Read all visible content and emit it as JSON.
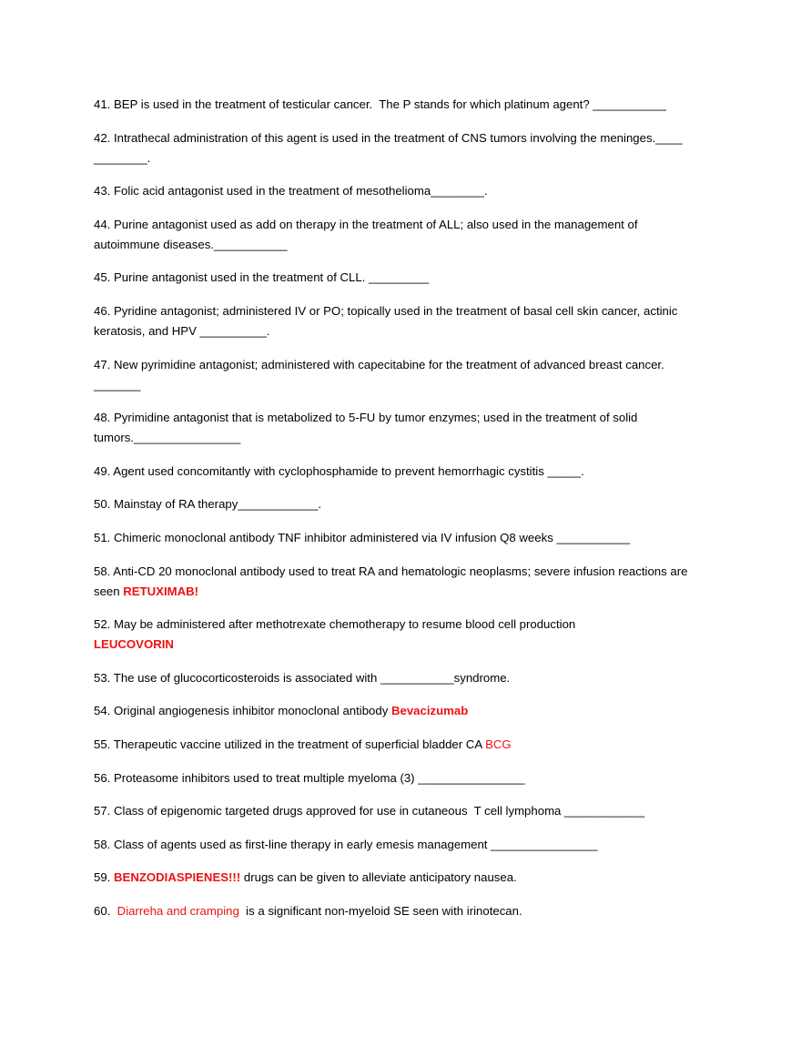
{
  "answer_color": "#ee1111",
  "items": [
    {
      "before": "41. BEP is used in the treatment of testicular cancer.  The P stands for which platinum agent? ___________"
    },
    {
      "before": "42. Intrathecal administration of this agent is used in the treatment of CNS tumors involving the meninges.____ ________."
    },
    {
      "before": "43. Folic acid antagonist used in the treatment of mesothelioma________."
    },
    {
      "before": "44. Purine antagonist used as add on therapy in the treatment of ALL; also used in the management of autoimmune diseases.___________"
    },
    {
      "before": "45. Purine antagonist used in the treatment of CLL. _________"
    },
    {
      "before": "46. Pyridine antagonist; administered IV or PO; topically used in the treatment of basal cell skin cancer, actinic keratosis, and HPV __________."
    },
    {
      "before": "47. New pyrimidine antagonist; administered with capecitabine for the treatment of advanced breast cancer. _______"
    },
    {
      "before": "48. Pyrimidine antagonist that is metabolized to 5-FU by tumor enzymes; used in the treatment of solid tumors.________________"
    },
    {
      "before": "49. Agent used concomitantly with cyclophosphamide to prevent hemorrhagic cystitis _____."
    },
    {
      "before": "50. Mainstay of RA therapy____________."
    },
    {
      "before": "51. Chimeric monoclonal antibody TNF inhibitor administered via IV infusion Q8 weeks ___________"
    },
    {
      "before": "58. Anti-CD 20 monoclonal antibody used to treat RA and hematologic neoplasms; severe infusion reactions are seen ",
      "answer": "RETUXIMAB!",
      "answer_weight": "bold"
    },
    {
      "before": "52. May be administered after methotrexate chemotherapy to resume blood cell production",
      "answer": "LEUCOVORIN",
      "answer_weight": "bold",
      "answer_on_new_line": true
    },
    {
      "before": "53. The use of glucocorticosteroids is associated with ___________syndrome."
    },
    {
      "before": "54. Original angiogenesis inhibitor monoclonal antibody ",
      "answer": "Bevacizumab",
      "answer_weight": "bold"
    },
    {
      "before": "55. Therapeutic vaccine utilized in the treatment of superficial bladder CA ",
      "answer": "BCG",
      "answer_weight": "normal"
    },
    {
      "before": "56. Proteasome inhibitors used to treat multiple myeloma (3) ________________"
    },
    {
      "before": "57. Class of epigenomic targeted drugs approved for use in cutaneous  T cell lymphoma ____________"
    },
    {
      "before": "58. Class of agents used as first-line therapy in early emesis management ________________"
    },
    {
      "before": "59. ",
      "answer": "BENZODIASPIENES!!!",
      "answer_weight": "bold",
      "after": " drugs can be given to alleviate anticipatory nausea."
    },
    {
      "before": "60.  ",
      "answer": "Diarreha and cramping",
      "answer_weight": "normal",
      "after": "  is a significant non-myeloid SE seen with irinotecan."
    }
  ]
}
